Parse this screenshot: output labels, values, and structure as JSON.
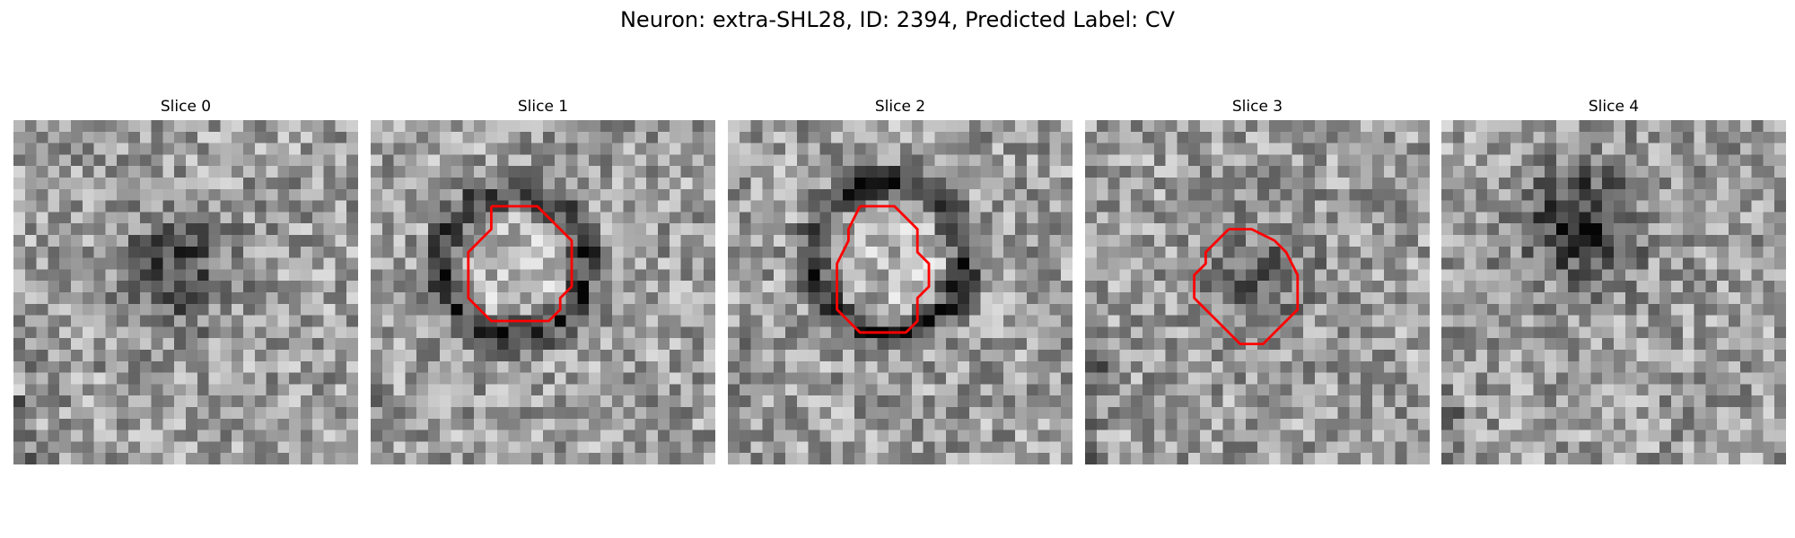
{
  "figure": {
    "title": "Neuron: extra-SHL28, ID: 2394, Predicted Label: CV"
  },
  "panels": [
    {
      "title": "Slice 0"
    },
    {
      "title": "Slice 1"
    },
    {
      "title": "Slice 2"
    },
    {
      "title": "Slice 3"
    },
    {
      "title": "Slice 4"
    }
  ],
  "colors": {
    "contour": "#ff0000"
  }
}
